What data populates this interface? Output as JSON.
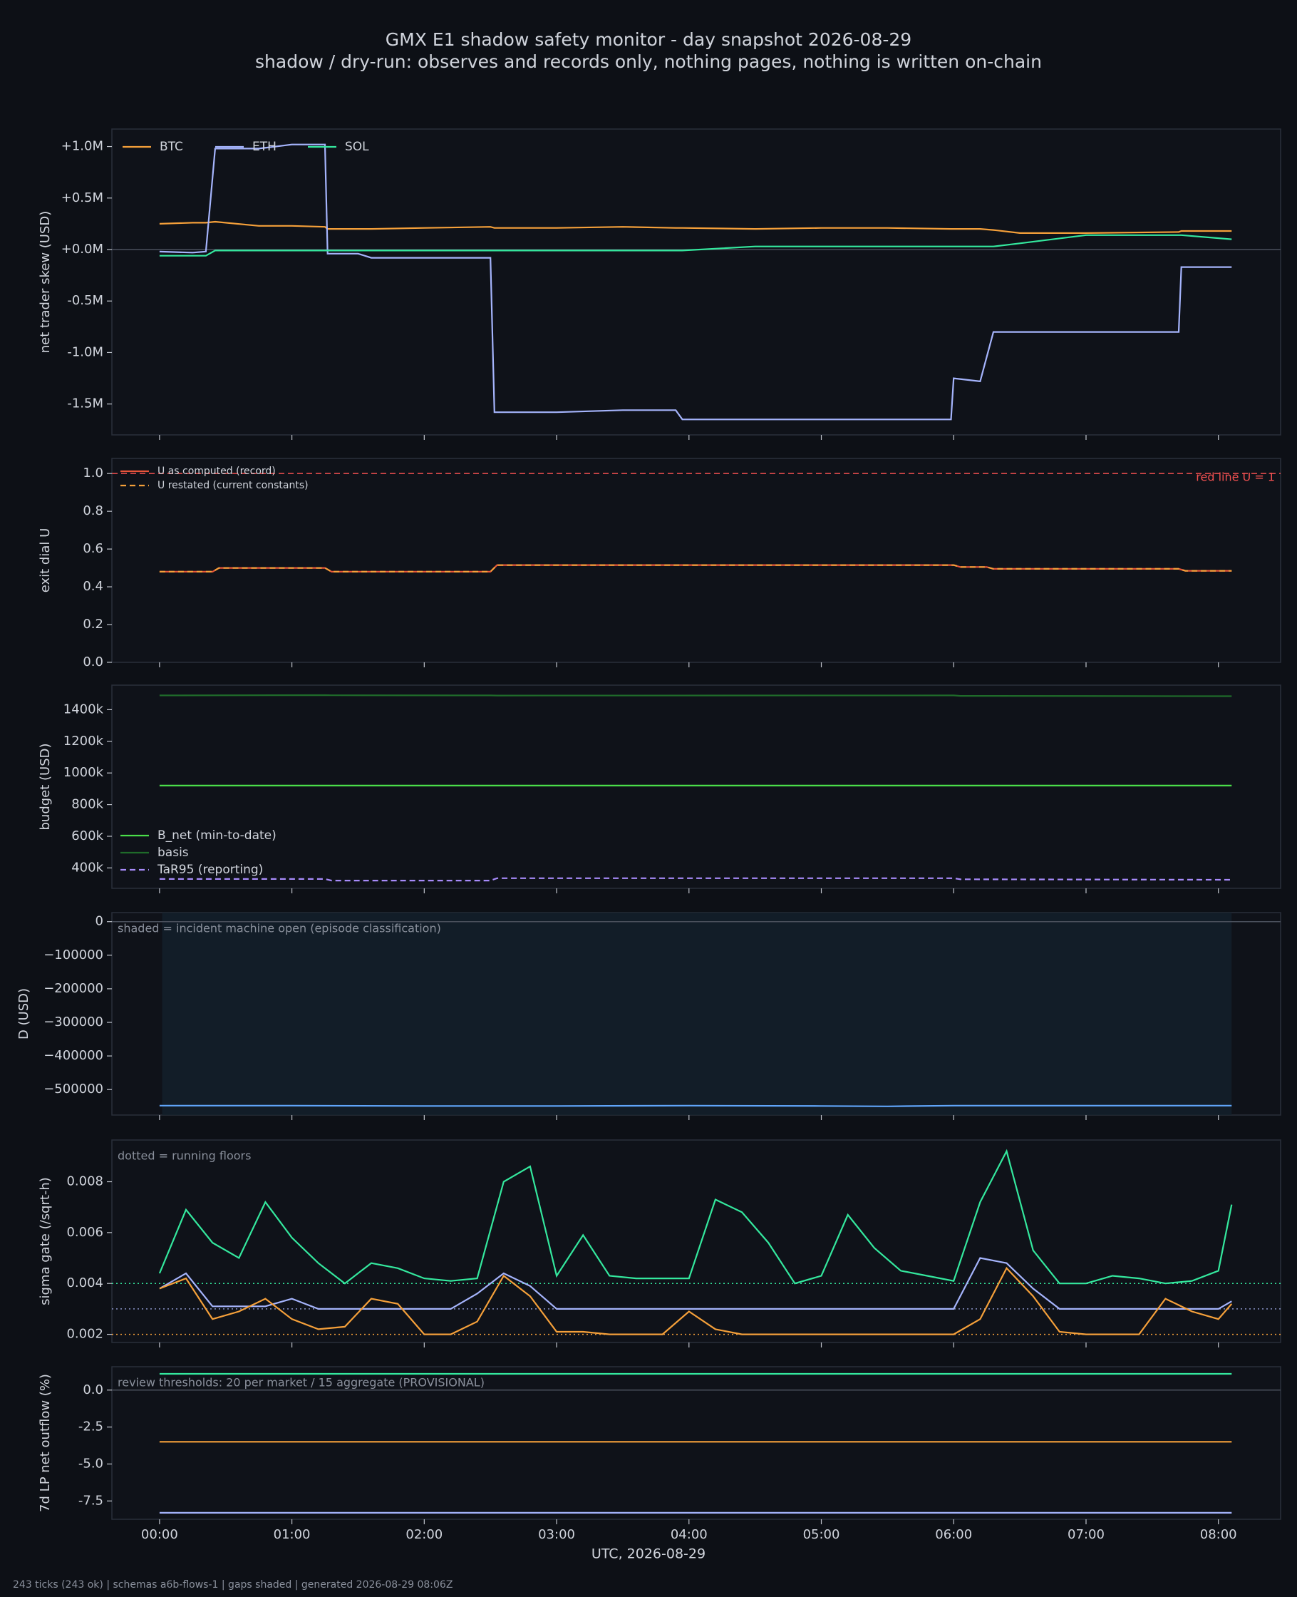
{
  "title": "GMX E1 shadow safety monitor - day snapshot 2026-08-29",
  "subtitle": "shadow / dry-run: observes and records only, nothing pages, nothing is written on-chain",
  "footer": "243 ticks (243 ok) | schemas a6b-flows-1 | gaps shaded | generated 2026-08-29 08:06Z",
  "x_axis": {
    "label": "UTC, 2026-08-29",
    "xlim": [
      -0.36,
      8.47
    ],
    "xticks": [
      {
        "value": 0,
        "label": "00:00"
      },
      {
        "value": 1,
        "label": "01:00"
      },
      {
        "value": 2,
        "label": "02:00"
      },
      {
        "value": 3,
        "label": "03:00"
      },
      {
        "value": 4,
        "label": "04:00"
      },
      {
        "value": 5,
        "label": "05:00"
      },
      {
        "value": 6,
        "label": "06:00"
      },
      {
        "value": 7,
        "label": "07:00"
      },
      {
        "value": 8,
        "label": "08:00"
      }
    ]
  },
  "chart_data": [
    {
      "type": "line",
      "ylabel": "net trader skew (USD)",
      "ylim": [
        -1800000,
        1170000
      ],
      "zero_line": true,
      "legend": "upper left",
      "legend_ncol": 3,
      "yticks": [
        {
          "value": -1500000,
          "label": "-1.5M"
        },
        {
          "value": -1000000,
          "label": "-1.0M"
        },
        {
          "value": -500000,
          "label": "-0.5M"
        },
        {
          "value": 0,
          "label": "+0.0M"
        },
        {
          "value": 500000,
          "label": "+0.5M"
        },
        {
          "value": 1000000,
          "label": "+1.0M"
        }
      ],
      "x": [
        0,
        0.25,
        0.35,
        0.42,
        0.75,
        1.0,
        1.25,
        1.27,
        1.5,
        1.6,
        2.0,
        2.5,
        2.53,
        3.0,
        3.5,
        3.9,
        3.95,
        4.5,
        5.0,
        5.5,
        5.98,
        6.0,
        6.2,
        6.3,
        6.5,
        7.0,
        7.7,
        7.72,
        8.1
      ],
      "series": [
        {
          "name": "BTC",
          "color": "#f5a03a",
          "values": [
            250000,
            260000,
            260000,
            270000,
            230000,
            230000,
            220000,
            200000,
            200000,
            200000,
            210000,
            220000,
            210000,
            210000,
            220000,
            210000,
            210000,
            200000,
            210000,
            210000,
            200000,
            200000,
            200000,
            190000,
            160000,
            160000,
            170000,
            180000,
            180000
          ]
        },
        {
          "name": "ETH",
          "color": "#a5b4fc",
          "values": [
            -20000,
            -30000,
            -20000,
            980000,
            980000,
            1020000,
            1020000,
            -40000,
            -40000,
            -80000,
            -80000,
            -80000,
            -1580000,
            -1580000,
            -1560000,
            -1560000,
            -1650000,
            -1650000,
            -1650000,
            -1650000,
            -1650000,
            -1250000,
            -1280000,
            -800000,
            -800000,
            -800000,
            -800000,
            -170000,
            -170000
          ]
        },
        {
          "name": "SOL",
          "color": "#34e89e",
          "values": [
            -60000,
            -60000,
            -60000,
            -10000,
            -10000,
            -10000,
            -10000,
            -10000,
            -10000,
            -10000,
            -10000,
            -10000,
            -10000,
            -10000,
            -10000,
            -10000,
            -10000,
            30000,
            30000,
            30000,
            30000,
            30000,
            30000,
            30000,
            60000,
            140000,
            140000,
            140000,
            100000
          ]
        }
      ]
    },
    {
      "type": "line",
      "ylabel": "exit dial U",
      "ylim": [
        0,
        1.08
      ],
      "legend": "upper left",
      "legend_ncol": 1,
      "legend_small": true,
      "yticks": [
        {
          "value": 0,
          "label": "0.0"
        },
        0.2,
        0.4,
        0.6,
        0.8,
        {
          "value": 1,
          "label": "1.0"
        }
      ],
      "hlines": [
        {
          "value": 1,
          "color": "#f05050",
          "dash": "dashed",
          "label": "red line U = 1"
        }
      ],
      "x": [
        0,
        0.4,
        0.45,
        1.25,
        1.3,
        2.5,
        2.55,
        6.0,
        6.05,
        6.25,
        6.3,
        7.7,
        7.75,
        8.1
      ],
      "series": [
        {
          "name": "U as computed (record)",
          "color": "#e8553a",
          "values": [
            0.48,
            0.48,
            0.5,
            0.5,
            0.48,
            0.48,
            0.515,
            0.515,
            0.505,
            0.505,
            0.495,
            0.495,
            0.485,
            0.485
          ]
        },
        {
          "name": "U restated (current constants)",
          "color": "#f5a03a",
          "dash": "dashed",
          "values": [
            0.48,
            0.48,
            0.5,
            0.5,
            0.48,
            0.48,
            0.515,
            0.515,
            0.505,
            0.505,
            0.495,
            0.495,
            0.485,
            0.485
          ]
        }
      ]
    },
    {
      "type": "line",
      "ylabel": "budget (USD)",
      "ylim": [
        271000,
        1555000
      ],
      "legend": "lower left",
      "legend_ncol": 1,
      "yticks": [
        {
          "value": 400000,
          "label": "400k"
        },
        {
          "value": 600000,
          "label": "600k"
        },
        {
          "value": 800000,
          "label": "800k"
        },
        {
          "value": 1000000,
          "label": "1000k"
        },
        {
          "value": 1200000,
          "label": "1200k"
        },
        {
          "value": 1400000,
          "label": "1400k"
        }
      ],
      "x": [
        0,
        1.25,
        1.3,
        2.5,
        2.55,
        6.0,
        6.05,
        8.1
      ],
      "series": [
        {
          "name": "B_net (min-to-date)",
          "color": "#4ade4a",
          "values": [
            920000,
            920000,
            920000,
            920000,
            920000,
            920000,
            920000,
            920000
          ]
        },
        {
          "name": "basis",
          "color": "#1f6b2a",
          "values": [
            1490000,
            1492000,
            1491000,
            1490000,
            1489000,
            1490000,
            1487000,
            1485000
          ]
        },
        {
          "name": "TaR95 (reporting)",
          "color": "#a78bfa",
          "dash": "dashed",
          "values": [
            330000,
            330000,
            320000,
            320000,
            335000,
            335000,
            328000,
            325000
          ]
        }
      ]
    },
    {
      "type": "line",
      "ylabel": "D (USD)",
      "ylim": [
        -576000,
        27000
      ],
      "zero_line": true,
      "note": "shaded = incident machine open (episode classification)",
      "spans": [
        [
          0.02,
          8.1
        ]
      ],
      "yticks": [
        {
          "value": -500000,
          "label": "−500000"
        },
        {
          "value": -400000,
          "label": "−400000"
        },
        {
          "value": -300000,
          "label": "−300000"
        },
        {
          "value": -200000,
          "label": "−200000"
        },
        {
          "value": -100000,
          "label": "−100000"
        },
        0
      ],
      "x": [
        0,
        1.0,
        2.0,
        3.0,
        4.0,
        5.0,
        5.5,
        6.0,
        7.0,
        8.1
      ],
      "color": "#60a5fa",
      "values": [
        -548000,
        -548000,
        -549000,
        -549000,
        -548000,
        -549000,
        -550000,
        -548000,
        -548000,
        -548000
      ]
    },
    {
      "type": "line",
      "ylabel": "sigma gate (/sqrt-h)",
      "ylim": [
        0.00168,
        0.00964
      ],
      "note": "dotted = running floors",
      "yticks": [
        0.002,
        0.004,
        0.006,
        0.008
      ],
      "hlines": [
        {
          "value": 0.004,
          "color": "#34e89e",
          "dash": "dotted"
        },
        {
          "value": 0.003,
          "color": "#8a94c8",
          "dash": "dotted"
        },
        {
          "value": 0.002,
          "color": "#f5a03a",
          "dash": "dotted"
        }
      ],
      "x": [
        0,
        0.2,
        0.4,
        0.6,
        0.8,
        1.0,
        1.2,
        1.4,
        1.6,
        1.8,
        2.0,
        2.2,
        2.4,
        2.6,
        2.8,
        3.0,
        3.2,
        3.4,
        3.6,
        3.8,
        4.0,
        4.2,
        4.4,
        4.6,
        4.8,
        5.0,
        5.2,
        5.4,
        5.6,
        5.8,
        6.0,
        6.2,
        6.4,
        6.6,
        6.8,
        7.0,
        7.2,
        7.4,
        7.6,
        7.8,
        8.0,
        8.1
      ],
      "series": [
        {
          "color": "#34e89e",
          "values": [
            0.0044,
            0.0069,
            0.0056,
            0.005,
            0.0072,
            0.0058,
            0.0048,
            0.004,
            0.0048,
            0.0046,
            0.0042,
            0.0041,
            0.0042,
            0.008,
            0.0086,
            0.0043,
            0.0059,
            0.0043,
            0.0042,
            0.0042,
            0.0042,
            0.0073,
            0.0068,
            0.0056,
            0.004,
            0.0043,
            0.0067,
            0.0054,
            0.0045,
            0.0043,
            0.0041,
            0.0072,
            0.0092,
            0.0053,
            0.004,
            0.004,
            0.0043,
            0.0042,
            0.004,
            0.0041,
            0.0045,
            0.0071
          ]
        },
        {
          "color": "#a5b4fc",
          "values": [
            0.0038,
            0.0044,
            0.0031,
            0.0031,
            0.0031,
            0.0034,
            0.003,
            0.003,
            0.003,
            0.003,
            0.003,
            0.003,
            0.0036,
            0.0044,
            0.0039,
            0.003,
            0.003,
            0.003,
            0.003,
            0.003,
            0.003,
            0.003,
            0.003,
            0.003,
            0.003,
            0.003,
            0.003,
            0.003,
            0.003,
            0.003,
            0.003,
            0.005,
            0.0048,
            0.0038,
            0.003,
            0.003,
            0.003,
            0.003,
            0.003,
            0.003,
            0.003,
            0.0033
          ]
        },
        {
          "color": "#f5a03a",
          "values": [
            0.0038,
            0.0042,
            0.0026,
            0.0029,
            0.0034,
            0.0026,
            0.0022,
            0.0023,
            0.0034,
            0.0032,
            0.002,
            0.002,
            0.0025,
            0.0043,
            0.0035,
            0.0021,
            0.0021,
            0.002,
            0.002,
            0.002,
            0.0029,
            0.0022,
            0.002,
            0.002,
            0.002,
            0.002,
            0.002,
            0.002,
            0.002,
            0.002,
            0.002,
            0.0026,
            0.0046,
            0.0035,
            0.0021,
            0.002,
            0.002,
            0.002,
            0.0034,
            0.0029,
            0.0026,
            0.0032
          ]
        }
      ]
    },
    {
      "type": "line",
      "ylabel": "7d LP net outflow (%)",
      "ylim": [
        -8.74,
        1.58
      ],
      "zero_line": true,
      "note": "review thresholds: 20 per market / 15 aggregate (PROVISIONAL)",
      "yticks": [
        -7.5,
        {
          "value": -5,
          "label": "-5.0"
        },
        -2.5,
        {
          "value": 0,
          "label": "0.0"
        }
      ],
      "x": [
        0,
        8.1
      ],
      "series": [
        {
          "color": "#34e89e",
          "values": [
            1.1,
            1.1
          ]
        },
        {
          "color": "#f5a03a",
          "values": [
            -3.5,
            -3.5
          ]
        },
        {
          "color": "#a5b4fc",
          "values": [
            -8.3,
            -8.3
          ]
        }
      ]
    }
  ]
}
